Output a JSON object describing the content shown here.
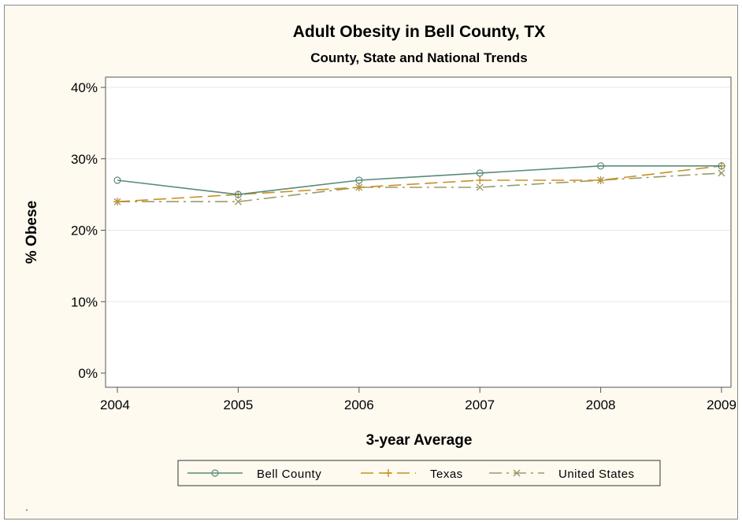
{
  "chart_data": {
    "type": "line",
    "title": "Adult Obesity in Bell County, TX",
    "subtitle": "County, State and National Trends",
    "xlabel": "3-year Average",
    "ylabel": "% Obese",
    "x": [
      2004,
      2005,
      2006,
      2007,
      2008,
      2009
    ],
    "x_tick_labels": [
      "2004",
      "2005",
      "2006",
      "2007",
      "2008",
      "2009"
    ],
    "y_tick_labels": [
      "0%",
      "10%",
      "20%",
      "30%",
      "40%"
    ],
    "y_ticks": [
      0,
      10,
      20,
      30,
      40
    ],
    "ylim": [
      0,
      40
    ],
    "grid": "horizontal",
    "legend_position": "bottom",
    "series": [
      {
        "name": "Bell County",
        "values": [
          27,
          25,
          27,
          28,
          29,
          29
        ],
        "color": "#5a8a78",
        "marker": "circle",
        "line_style": "solid"
      },
      {
        "name": "Texas",
        "values": [
          24,
          25,
          26,
          27,
          27,
          29
        ],
        "color": "#c89020",
        "marker": "plus",
        "line_style": "dashed"
      },
      {
        "name": "United States",
        "values": [
          24,
          24,
          26,
          26,
          27,
          28
        ],
        "color": "#9a9a6a",
        "marker": "x",
        "line_style": "dash-dot"
      }
    ]
  },
  "colors": {
    "background": "#fffaf0",
    "plot_background": "#ffffff",
    "gridline": "#ede8dc"
  }
}
